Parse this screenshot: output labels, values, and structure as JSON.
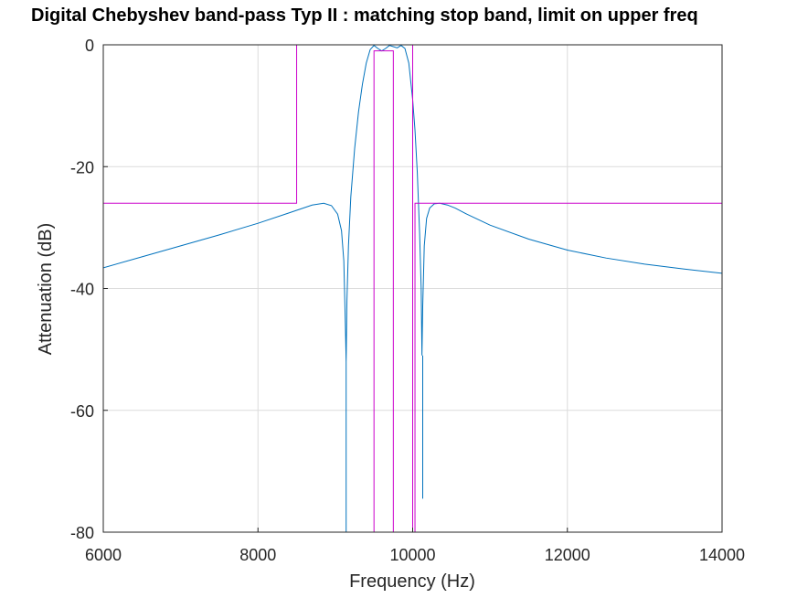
{
  "chart_data": {
    "type": "line",
    "title": "Digital Chebyshev band-pass Typ II : matching stop band, limit on upper freq",
    "xlabel": "Frequency (Hz)",
    "ylabel": "Attenuation (dB)",
    "xlim": [
      6000,
      14000
    ],
    "ylim": [
      -80,
      0
    ],
    "xticks": [
      6000,
      8000,
      10000,
      12000,
      14000
    ],
    "yticks": [
      -80,
      -60,
      -40,
      -20,
      0
    ],
    "xtick_labels": [
      "6000",
      "8000",
      "10000",
      "12000",
      "14000"
    ],
    "ytick_labels": [
      "-80",
      "-60",
      "-40",
      "-20",
      "0"
    ],
    "grid": true,
    "legend": "none",
    "colors": {
      "response": "#0072bd",
      "mask": "#cc00cc",
      "grid": "#dcdcdc",
      "axis": "#262626"
    },
    "series": [
      {
        "role": "filter-response",
        "x": [
          6000,
          6500,
          7000,
          7500,
          8000,
          8400,
          8700,
          8850,
          8950,
          9030,
          9080,
          9110,
          9130,
          9140,
          9150,
          9170,
          9200,
          9250,
          9300,
          9350,
          9400,
          9450,
          9500,
          9550,
          9600,
          9650,
          9700,
          9750,
          9800,
          9850,
          9900,
          9950,
          10000,
          10030,
          10060,
          10090,
          10110,
          10120,
          10130,
          10150,
          10180,
          10220,
          10280,
          10350,
          10450,
          10550,
          10700,
          11000,
          11500,
          12000,
          12500,
          13000,
          13500,
          14000
        ],
        "y": [
          -36.6,
          -34.8,
          -33.0,
          -31.2,
          -29.3,
          -27.6,
          -26.3,
          -26.0,
          -26.4,
          -27.8,
          -30.5,
          -35.5,
          -46.0,
          -52.0,
          -42.0,
          -33.0,
          -25.0,
          -17.0,
          -11.0,
          -6.5,
          -3.0,
          -0.8,
          -0.1,
          -0.6,
          -1.0,
          -0.6,
          -0.1,
          -0.3,
          -0.5,
          -0.1,
          -0.6,
          -3.0,
          -9.0,
          -14.0,
          -21.0,
          -31.0,
          -40.0,
          -51.0,
          -43.0,
          -33.0,
          -28.5,
          -26.8,
          -26.1,
          -26.0,
          -26.3,
          -26.8,
          -27.8,
          -29.6,
          -31.9,
          -33.7,
          -35.0,
          -36.0,
          -36.8,
          -37.5
        ]
      },
      {
        "role": "notch-spike-lower",
        "x": [
          9140,
          9140
        ],
        "y": [
          -52,
          -80
        ]
      },
      {
        "role": "notch-spike-upper",
        "x": [
          10130,
          10130
        ],
        "y": [
          -51,
          -74.5
        ]
      },
      {
        "role": "stopband-passband-mask",
        "x": [
          6000,
          8500,
          8500,
          10000,
          10000,
          10030,
          10030,
          14000
        ],
        "y": [
          -26,
          -26,
          0,
          0,
          -80,
          -80,
          -26,
          -26
        ]
      },
      {
        "role": "passband-min-attenuation-mask",
        "x": [
          9500,
          9500,
          9750,
          9750
        ],
        "y": [
          -80,
          -1,
          -1,
          -80
        ]
      }
    ]
  }
}
